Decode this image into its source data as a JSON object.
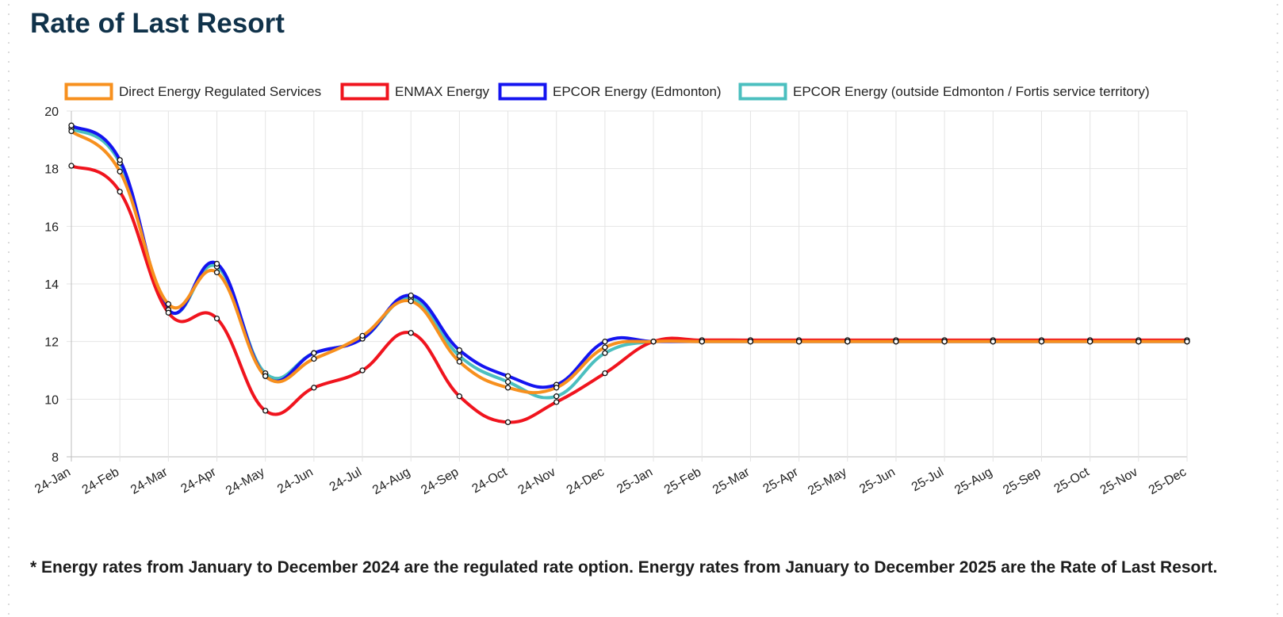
{
  "page": {
    "title": "Rate of Last Resort",
    "footnote": "* Energy rates from January to December 2024 are the regulated rate option. Energy rates from January to December 2025 are the Rate of Last Resort."
  },
  "chart_data": {
    "type": "line",
    "title": "",
    "xlabel": "",
    "ylabel": "",
    "ylim": [
      8,
      20
    ],
    "yticks": [
      8,
      10,
      12,
      14,
      16,
      18,
      20
    ],
    "grid": true,
    "legend_position": "top",
    "categories": [
      "24-Jan",
      "24-Feb",
      "24-Mar",
      "24-Apr",
      "24-May",
      "24-Jun",
      "24-Jul",
      "24-Aug",
      "24-Sep",
      "24-Oct",
      "24-Nov",
      "24-Dec",
      "25-Jan",
      "25-Feb",
      "25-Mar",
      "25-Apr",
      "25-May",
      "25-Jun",
      "25-Jul",
      "25-Aug",
      "25-Sep",
      "25-Oct",
      "25-Nov",
      "25-Dec"
    ],
    "series": [
      {
        "name": "Direct Energy Regulated Services",
        "color": "#f7901e",
        "values": [
          19.3,
          17.9,
          13.3,
          14.4,
          10.8,
          11.4,
          12.2,
          13.4,
          11.3,
          10.4,
          10.4,
          11.8,
          12.0,
          12.0,
          12.0,
          12.0,
          12.0,
          12.0,
          12.0,
          12.0,
          12.0,
          12.0,
          12.0,
          12.0
        ]
      },
      {
        "name": "ENMAX Energy",
        "color": "#f0141e",
        "values": [
          18.1,
          17.2,
          13.0,
          12.8,
          9.6,
          10.4,
          11.0,
          12.3,
          10.1,
          9.2,
          9.9,
          10.9,
          12.0,
          12.05,
          12.05,
          12.05,
          12.05,
          12.05,
          12.05,
          12.05,
          12.05,
          12.05,
          12.05,
          12.05
        ]
      },
      {
        "name": "EPCOR Energy (Edmonton)",
        "color": "#1414f0",
        "values": [
          19.5,
          18.3,
          13.1,
          14.7,
          10.8,
          11.6,
          12.1,
          13.6,
          11.7,
          10.8,
          10.5,
          12.0,
          12.0,
          12.0,
          12.0,
          12.0,
          12.0,
          12.0,
          12.0,
          12.0,
          12.0,
          12.0,
          12.0,
          12.0
        ]
      },
      {
        "name": "EPCOR Energy (outside Edmonton / Fortis service territory)",
        "color": "#4bbfbf",
        "values": [
          19.4,
          18.2,
          13.1,
          14.6,
          10.9,
          11.6,
          12.1,
          13.5,
          11.5,
          10.6,
          10.1,
          11.6,
          12.0,
          12.0,
          12.0,
          12.0,
          12.0,
          12.0,
          12.0,
          12.0,
          12.0,
          12.0,
          12.0,
          12.0
        ]
      }
    ]
  }
}
